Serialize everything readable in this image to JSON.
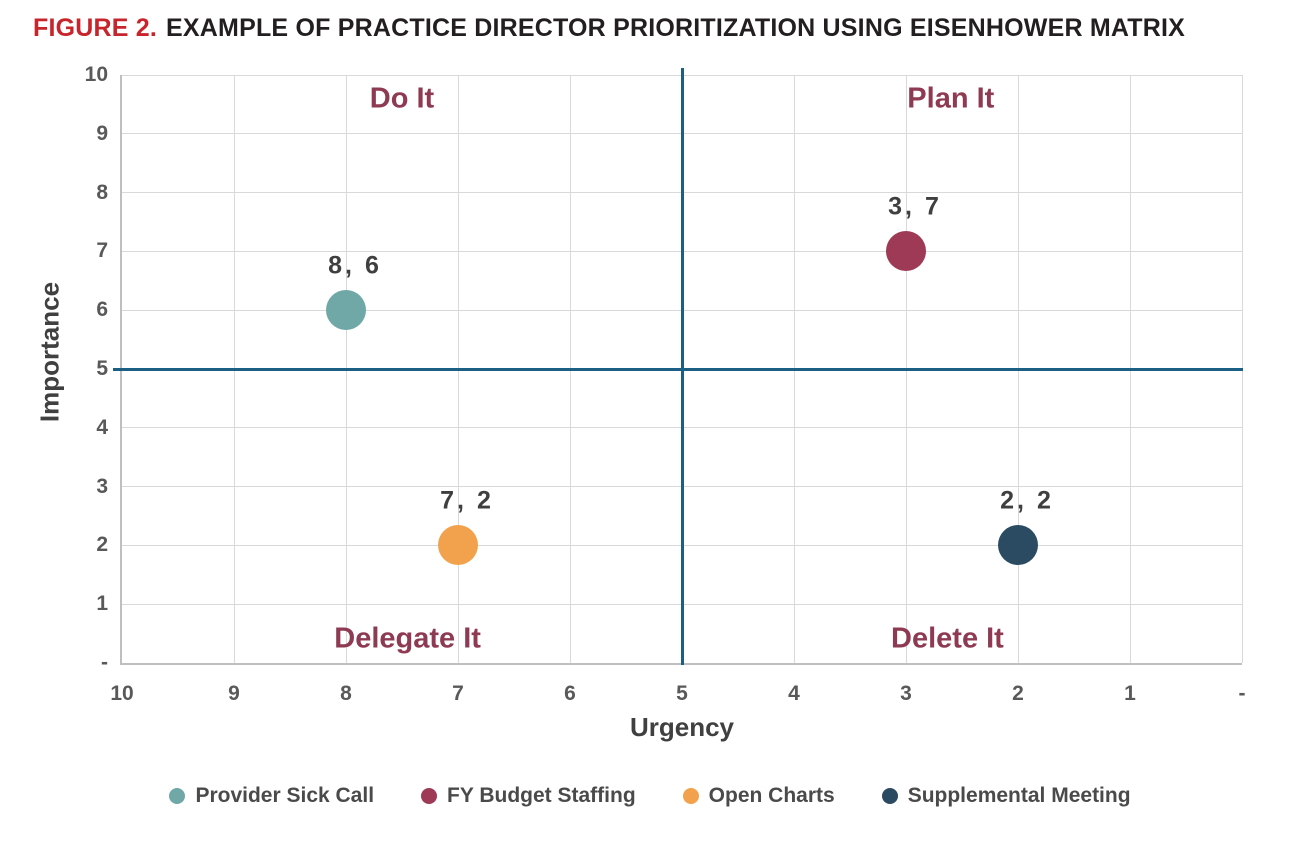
{
  "title": {
    "figure_label": "FIGURE 2.",
    "text": "EXAMPLE OF PRACTICE DIRECTOR PRIORITIZATION USING EISENHOWER MATRIX"
  },
  "colors": {
    "figure_label_red": "#C8242C",
    "title_text": "#231F20",
    "gridline": "#D9D9D9",
    "axis_line": "#BFBFBF",
    "threshold_blue": "#1B5F85",
    "quadrant_label": "#8E3A52",
    "tick_text": "#595959",
    "axis_title_text": "#404040",
    "data_label_text": "#3F3F3F",
    "legend_text": "#4A4A4A"
  },
  "chart_data": {
    "type": "scatter",
    "title": "",
    "xlabel": "Urgency",
    "ylabel": "Importance",
    "x_axis": {
      "min": 0,
      "max": 10,
      "reversed": true,
      "ticks": [
        "10",
        "9",
        "8",
        "7",
        "6",
        "5",
        "4",
        "3",
        "2",
        "1",
        "-"
      ]
    },
    "y_axis": {
      "min": 0,
      "max": 10,
      "ticks": [
        "10",
        "9",
        "8",
        "7",
        "6",
        "5",
        "4",
        "3",
        "2",
        "1",
        "-"
      ]
    },
    "grid": true,
    "threshold_lines": {
      "x": 5,
      "y": 5,
      "color": "#1B5F85"
    },
    "quadrants": [
      {
        "label": "Do It",
        "x": 7.5,
        "y": 9.6
      },
      {
        "label": "Plan It",
        "x": 2.6,
        "y": 9.6
      },
      {
        "label": "Delegate It",
        "x": 7.45,
        "y": 0.4
      },
      {
        "label": "Delete It",
        "x": 2.63,
        "y": 0.4
      }
    ],
    "series": [
      {
        "name": "Provider Sick Call",
        "x": 8,
        "y": 6,
        "label": "8, 6",
        "color": "#6FA8A6"
      },
      {
        "name": "FY Budget Staffing",
        "x": 3,
        "y": 7,
        "label": "3, 7",
        "color": "#9E3A55"
      },
      {
        "name": "Open Charts",
        "x": 7,
        "y": 2,
        "label": "7, 2",
        "color": "#F2A24C"
      },
      {
        "name": "Supplemental Meeting",
        "x": 2,
        "y": 2,
        "label": "2, 2",
        "color": "#2B4B63"
      }
    ],
    "legend_position": "bottom"
  },
  "legend": [
    {
      "label": "Provider Sick Call",
      "color": "#6FA8A6"
    },
    {
      "label": "FY Budget Staffing",
      "color": "#9E3A55"
    },
    {
      "label": "Open Charts",
      "color": "#F2A24C"
    },
    {
      "label": "Supplemental Meeting",
      "color": "#2B4B63"
    }
  ]
}
